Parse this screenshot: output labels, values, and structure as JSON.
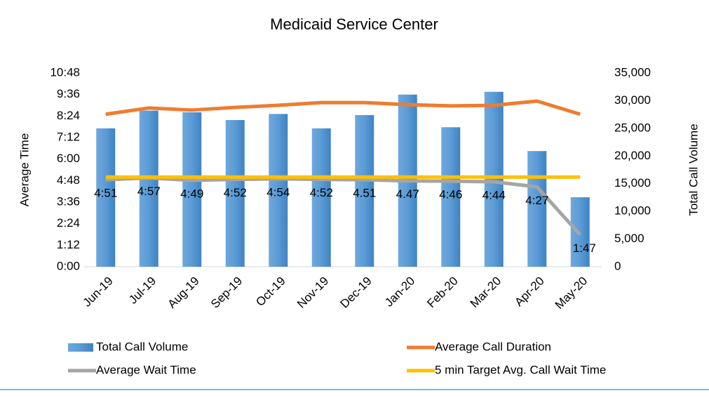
{
  "chart_data": {
    "type": "combo",
    "title": "Medicaid Service Center",
    "y_label": "Average Time",
    "y2_label": "Total Call Volume",
    "categories": [
      "Jun-19",
      "Jul-19",
      "Aug-19",
      "Sep-19",
      "Oct-19",
      "Nov-19",
      "Dec-19",
      "Jan-20",
      "Feb-20",
      "Mar-20",
      "Apr-20",
      "May-20"
    ],
    "ylim": [
      0,
      648
    ],
    "yticks": [
      {
        "value": 0,
        "label": "0:00"
      },
      {
        "value": 72,
        "label": "1:12"
      },
      {
        "value": 144,
        "label": "2:24"
      },
      {
        "value": 216,
        "label": "3:36"
      },
      {
        "value": 288,
        "label": "4:48"
      },
      {
        "value": 360,
        "label": "6:00"
      },
      {
        "value": 432,
        "label": "7:12"
      },
      {
        "value": 504,
        "label": "8:24"
      },
      {
        "value": 576,
        "label": "9:36"
      },
      {
        "value": 648,
        "label": "10:48"
      }
    ],
    "y2lim": [
      0,
      35000
    ],
    "y2ticks": [
      0,
      {
        "value": 5000,
        "label": "5,000"
      },
      {
        "value": 10000,
        "label": "10,000"
      },
      {
        "value": 15000,
        "label": "15,000"
      },
      {
        "value": 20000,
        "label": "20,000"
      },
      {
        "value": 25000,
        "label": "25,000"
      },
      {
        "value": 30000,
        "label": "30,000"
      },
      {
        "value": 35000,
        "label": "35,000"
      }
    ],
    "series": [
      {
        "name": "Total Call Volume",
        "type": "bar",
        "axis": "y2",
        "color": "#5b9bd5",
        "values": [
          25000,
          28200,
          27900,
          26500,
          27600,
          25000,
          27400,
          31100,
          25200,
          31600,
          20900,
          12550
        ]
      },
      {
        "name": "Average Call Duration",
        "type": "line",
        "color": "#ed7d31",
        "values": [
          510,
          531,
          524,
          533,
          540,
          549,
          549,
          542,
          538,
          540,
          554,
          510
        ]
      },
      {
        "name": "Average Wait Time",
        "type": "line",
        "color": "#a5a5a5",
        "values": [
          291,
          297,
          289,
          292,
          294,
          292,
          291,
          287,
          286,
          284,
          267,
          107
        ],
        "value_labels": [
          "4:51",
          "4:57",
          "4:49",
          "4:52",
          "4:54",
          "4:52",
          "4.51",
          "4.47",
          "4:46",
          "4:44",
          "4:27",
          "1:47"
        ]
      },
      {
        "name": "5 min Target Avg. Call Wait Time",
        "type": "line",
        "color": "#ffc000",
        "values": [
          300,
          300,
          300,
          300,
          300,
          300,
          300,
          300,
          300,
          300,
          300,
          300
        ]
      }
    ]
  }
}
